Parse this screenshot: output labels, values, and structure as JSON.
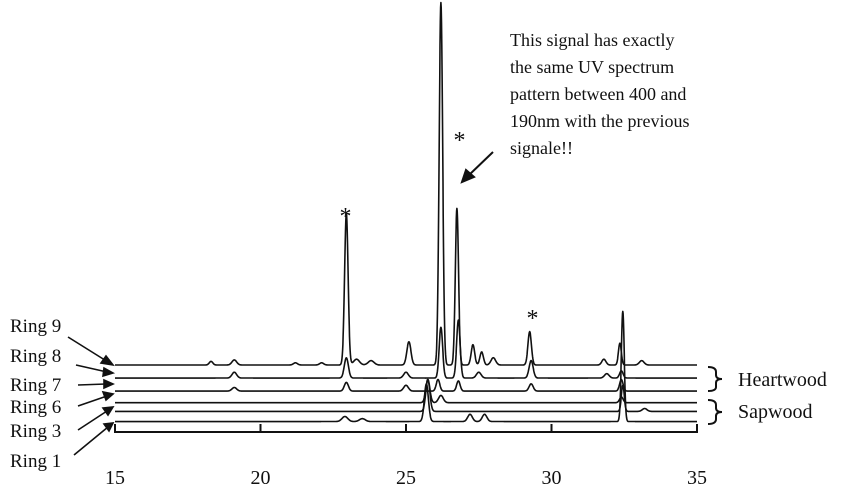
{
  "chart_data": {
    "type": "line",
    "xlim": [
      15,
      35
    ],
    "x_ticks": [
      "15",
      "20",
      "25",
      "30",
      "35"
    ],
    "grid": false,
    "series": [
      {
        "name": "Ring 9",
        "baseline": 0,
        "peaks": [
          [
            18.3,
            0.25,
            0.06
          ],
          [
            19.1,
            0.35,
            0.08
          ],
          [
            21.2,
            0.15,
            0.07
          ],
          [
            22.1,
            0.15,
            0.07
          ],
          [
            22.95,
            10.5,
            0.06
          ],
          [
            23.3,
            0.4,
            0.1
          ],
          [
            23.8,
            0.3,
            0.1
          ],
          [
            25.1,
            1.6,
            0.07
          ],
          [
            26.2,
            25.0,
            0.06
          ],
          [
            26.75,
            10.8,
            0.055
          ],
          [
            27.3,
            1.4,
            0.06
          ],
          [
            27.6,
            0.9,
            0.06
          ],
          [
            28.0,
            0.5,
            0.08
          ],
          [
            29.25,
            2.3,
            0.06
          ],
          [
            31.8,
            0.4,
            0.07
          ],
          [
            32.35,
            1.5,
            0.05
          ],
          [
            33.1,
            0.3,
            0.08
          ]
        ]
      },
      {
        "name": "Ring 8",
        "baseline": -0.9,
        "peaks": [
          [
            19.1,
            0.4,
            0.08
          ],
          [
            22.95,
            1.4,
            0.07
          ],
          [
            25.0,
            0.4,
            0.08
          ],
          [
            26.2,
            3.5,
            0.06
          ],
          [
            26.8,
            4.0,
            0.06
          ],
          [
            27.5,
            0.4,
            0.08
          ],
          [
            29.3,
            1.2,
            0.07
          ],
          [
            31.9,
            0.3,
            0.08
          ],
          [
            32.4,
            0.5,
            0.06
          ]
        ]
      },
      {
        "name": "Ring 7",
        "baseline": -1.8,
        "peaks": [
          [
            19.1,
            0.25,
            0.08
          ],
          [
            22.95,
            0.6,
            0.07
          ],
          [
            25.0,
            0.4,
            0.08
          ],
          [
            26.1,
            0.8,
            0.06
          ],
          [
            26.8,
            0.7,
            0.06
          ],
          [
            29.3,
            0.5,
            0.07
          ],
          [
            32.4,
            0.8,
            0.06
          ]
        ]
      },
      {
        "name": "Ring 6",
        "baseline": -2.6,
        "peaks": [
          [
            25.75,
            1.6,
            0.07
          ],
          [
            26.2,
            0.5,
            0.08
          ],
          [
            32.4,
            0.4,
            0.06
          ]
        ]
      },
      {
        "name": "Ring 3",
        "baseline": -3.2,
        "peaks": [
          [
            25.75,
            2.2,
            0.07
          ],
          [
            32.45,
            1.8,
            0.05
          ],
          [
            33.2,
            0.2,
            0.08
          ]
        ]
      },
      {
        "name": "Ring 1",
        "baseline": -3.9,
        "peaks": [
          [
            22.9,
            0.35,
            0.1
          ],
          [
            23.5,
            0.2,
            0.1
          ],
          [
            25.7,
            2.6,
            0.07
          ],
          [
            27.2,
            0.5,
            0.08
          ],
          [
            27.7,
            0.5,
            0.08
          ],
          [
            32.45,
            7.6,
            0.05
          ]
        ]
      }
    ],
    "groups": [
      {
        "label": "Heartwood",
        "series": [
          "Ring 9",
          "Ring 8",
          "Ring 7"
        ]
      },
      {
        "label": "Sapwood",
        "series": [
          "Ring 6",
          "Ring 3",
          "Ring 1"
        ]
      }
    ],
    "markers": [
      {
        "symbol": "*",
        "x": 22.95
      },
      {
        "symbol": "*",
        "x": 26.75
      },
      {
        "symbol": "*",
        "x": 29.25
      }
    ],
    "annotation": {
      "lines": [
        "This signal has exactly",
        "the same UV spectrum",
        "pattern between 400 and",
        "190nm with the previous",
        "signale!!"
      ],
      "points_to_x": 26.75
    }
  }
}
